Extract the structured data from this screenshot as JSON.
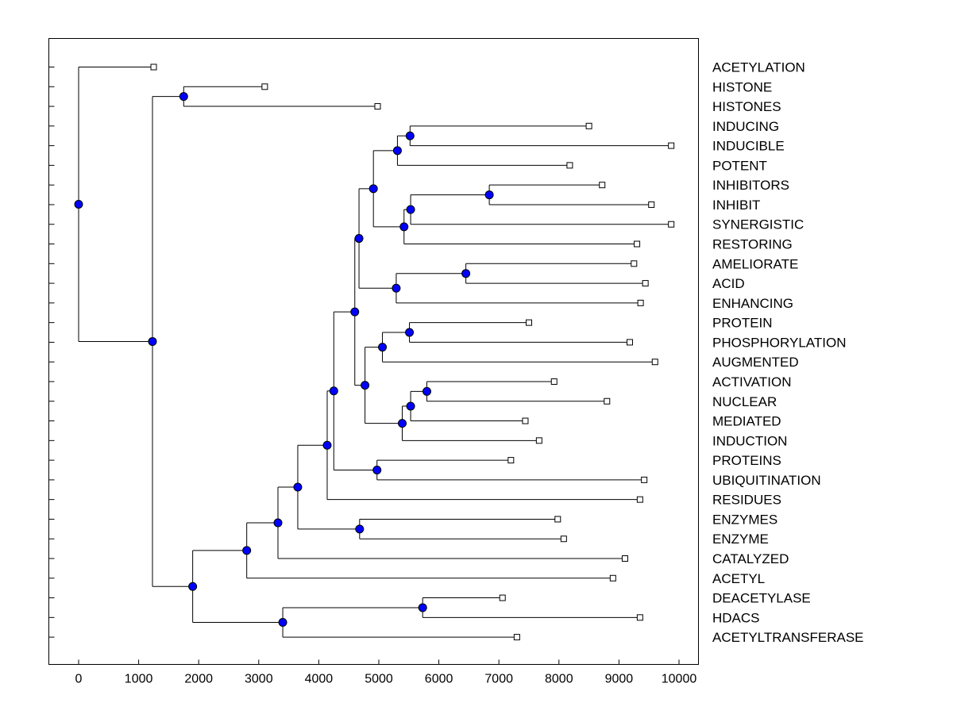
{
  "chart_data": {
    "type": "dendrogram",
    "orientation": "horizontal",
    "title": "",
    "xlabel": "",
    "ylabel": "",
    "xlim": [
      -500,
      10500
    ],
    "x_ticks": [
      0,
      1000,
      2000,
      3000,
      4000,
      5000,
      6000,
      7000,
      8000,
      9000,
      10000
    ],
    "x_tick_labels": [
      "0",
      "1000",
      "2000",
      "3000",
      "4000",
      "5000",
      "6000",
      "7000",
      "8000",
      "9000",
      "10000"
    ],
    "grid": false,
    "colors": {
      "node": "#0000ff",
      "line": "#000000",
      "leaf_fill": "#ffffff"
    },
    "leaves": [
      {
        "label": "ACETYLATION",
        "x": 1250
      },
      {
        "label": "HISTONE",
        "x": 3100
      },
      {
        "label": "HISTONES",
        "x": 4980
      },
      {
        "label": "INDUCING",
        "x": 8500
      },
      {
        "label": "INDUCIBLE",
        "x": 9870
      },
      {
        "label": "POTENT",
        "x": 8180
      },
      {
        "label": "INHIBITORS",
        "x": 8720
      },
      {
        "label": "INHIBIT",
        "x": 9540
      },
      {
        "label": "SYNERGISTIC",
        "x": 9870
      },
      {
        "label": "RESTORING",
        "x": 9300
      },
      {
        "label": "AMELIORATE",
        "x": 9250
      },
      {
        "label": "ACID",
        "x": 9440
      },
      {
        "label": "ENHANCING",
        "x": 9360
      },
      {
        "label": "PROTEIN",
        "x": 7500
      },
      {
        "label": "PHOSPHORYLATION",
        "x": 9180
      },
      {
        "label": "AUGMENTED",
        "x": 9600
      },
      {
        "label": "ACTIVATION",
        "x": 7920
      },
      {
        "label": "NUCLEAR",
        "x": 8800
      },
      {
        "label": "MEDIATED",
        "x": 7440
      },
      {
        "label": "INDUCTION",
        "x": 7670
      },
      {
        "label": "PROTEINS",
        "x": 7200
      },
      {
        "label": "UBIQUITINATION",
        "x": 9420
      },
      {
        "label": "RESIDUES",
        "x": 9350
      },
      {
        "label": "ENZYMES",
        "x": 7980
      },
      {
        "label": "ENZYME",
        "x": 8080
      },
      {
        "label": "CATALYZED",
        "x": 9100
      },
      {
        "label": "ACETYL",
        "x": 8900
      },
      {
        "label": "DEACETYLASE",
        "x": 7060
      },
      {
        "label": "HDACS",
        "x": 9350
      },
      {
        "label": "ACETYLTRANSFERASE",
        "x": 7300
      }
    ],
    "nodes": [
      {
        "id": "N0",
        "x": 0,
        "children": [
          "ACETYLATION",
          "N1"
        ]
      },
      {
        "id": "N1",
        "x": 1230,
        "children": [
          "N2",
          "N3"
        ]
      },
      {
        "id": "N2",
        "x": 1750,
        "children": [
          "HISTONE",
          "HISTONES"
        ]
      },
      {
        "id": "N3",
        "x": 1900,
        "children": [
          "N4",
          "N23"
        ]
      },
      {
        "id": "N4",
        "x": 2800,
        "children": [
          "N5",
          "ACETYL"
        ]
      },
      {
        "id": "N5",
        "x": 3320,
        "children": [
          "N6",
          "CATALYZED"
        ]
      },
      {
        "id": "N6",
        "x": 3650,
        "children": [
          "N7",
          "N22"
        ]
      },
      {
        "id": "N7",
        "x": 4140,
        "children": [
          "N8",
          "RESIDUES"
        ]
      },
      {
        "id": "N8",
        "x": 4250,
        "children": [
          "N9",
          "N21"
        ]
      },
      {
        "id": "N9",
        "x": 4600,
        "children": [
          "N10",
          "N16"
        ]
      },
      {
        "id": "N10",
        "x": 4670,
        "children": [
          "N11",
          "N14"
        ]
      },
      {
        "id": "N11",
        "x": 4910,
        "children": [
          "N12",
          "N13"
        ]
      },
      {
        "id": "N12",
        "x": 5310,
        "children": [
          "N12a",
          "POTENT"
        ]
      },
      {
        "id": "N12a",
        "x": 5520,
        "children": [
          "INDUCING",
          "INDUCIBLE"
        ]
      },
      {
        "id": "N13",
        "x": 5420,
        "children": [
          "N13a",
          "RESTORING"
        ]
      },
      {
        "id": "N13a",
        "x": 5530,
        "children": [
          "N13b",
          "SYNERGISTIC"
        ]
      },
      {
        "id": "N13b",
        "x": 6840,
        "children": [
          "INHIBITORS",
          "INHIBIT"
        ]
      },
      {
        "id": "N14",
        "x": 5290,
        "children": [
          "N15",
          "ENHANCING"
        ]
      },
      {
        "id": "N15",
        "x": 6450,
        "children": [
          "AMELIORATE",
          "ACID"
        ]
      },
      {
        "id": "N16",
        "x": 4770,
        "children": [
          "N17",
          "N18"
        ]
      },
      {
        "id": "N17",
        "x": 5060,
        "children": [
          "N17a",
          "AUGMENTED"
        ]
      },
      {
        "id": "N17a",
        "x": 5510,
        "children": [
          "PROTEIN",
          "PHOSPHORYLATION"
        ]
      },
      {
        "id": "N18",
        "x": 5390,
        "children": [
          "N19",
          "INDUCTION"
        ]
      },
      {
        "id": "N19",
        "x": 5530,
        "children": [
          "N20",
          "MEDIATED"
        ]
      },
      {
        "id": "N20",
        "x": 5800,
        "children": [
          "ACTIVATION",
          "NUCLEAR"
        ]
      },
      {
        "id": "N21",
        "x": 4970,
        "children": [
          "PROTEINS",
          "UBIQUITINATION"
        ]
      },
      {
        "id": "N22",
        "x": 4680,
        "children": [
          "ENZYMES",
          "ENZYME"
        ]
      },
      {
        "id": "N23",
        "x": 3400,
        "children": [
          "N24",
          "ACETYLTRANSFERASE"
        ]
      },
      {
        "id": "N24",
        "x": 5730,
        "children": [
          "DEACETYLASE",
          "HDACS"
        ]
      }
    ]
  }
}
